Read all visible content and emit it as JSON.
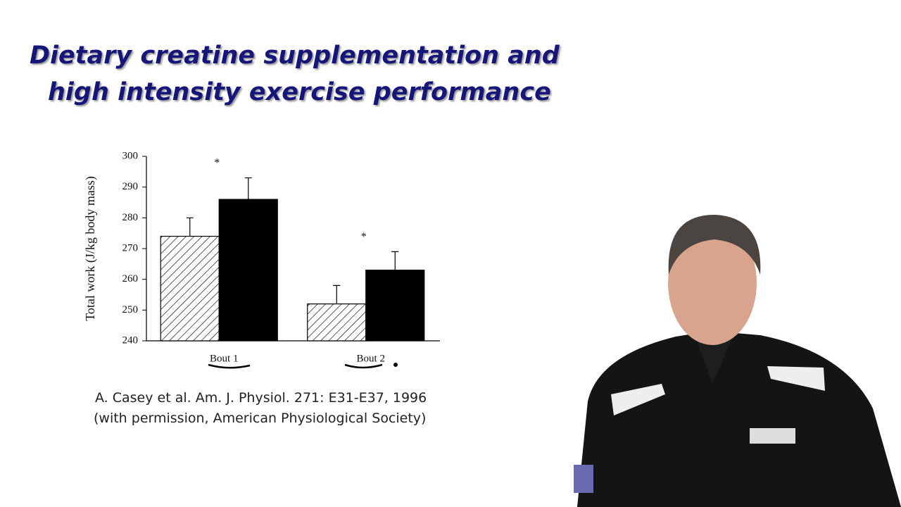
{
  "slide": {
    "title": [
      "Dietary creatine supplementation and",
      "high intensity exercise performance"
    ],
    "citation": [
      "A. Casey et al.  Am. J. Physiol. 271: E31-E37, 1996",
      "(with permission, American Physiological Society)"
    ]
  },
  "chart_data": {
    "type": "bar",
    "y_label": "Total work (J/kg body mass)",
    "categories": [
      "Bout 1",
      "Bout 2"
    ],
    "series": [
      {
        "color": "#000000",
        "hatch": true,
        "values": [
          274,
          252
        ],
        "errors": [
          6,
          6
        ]
      },
      {
        "color": "#000000",
        "hatch": false,
        "values": [
          286,
          263
        ],
        "errors": [
          7,
          6
        ],
        "annotations": [
          "*",
          "*"
        ]
      }
    ],
    "ylim": [
      240,
      300
    ],
    "yticks": [
      240,
      250,
      260,
      270,
      280,
      290,
      300
    ]
  }
}
